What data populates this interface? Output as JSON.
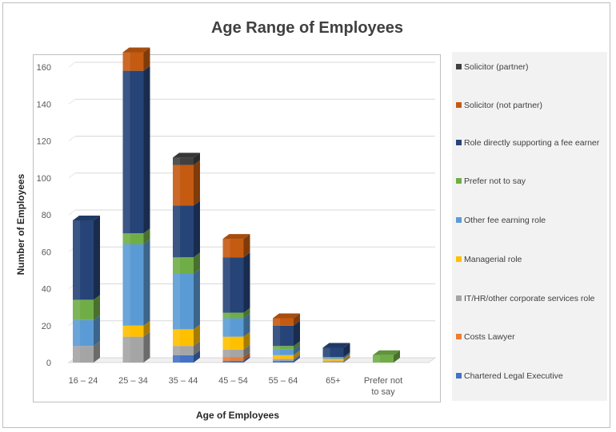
{
  "chart_data": {
    "type": "bar",
    "stacked": true,
    "three_d": true,
    "title": "Age Range of Employees",
    "xlabel": "Age of Employees",
    "ylabel": "Number of Employees",
    "ylim": [
      0,
      160
    ],
    "yticks": [
      0,
      20,
      40,
      60,
      80,
      100,
      120,
      140,
      160
    ],
    "grid": true,
    "legend_position": "right",
    "categories": [
      "16 – 24",
      "25 – 34",
      "35 – 44",
      "45 – 54",
      "55 – 64",
      "65+",
      "Prefer not to say"
    ],
    "series": [
      {
        "name": "Chartered Legal Executive",
        "color": "#4472C4",
        "values": [
          0,
          0,
          4,
          1,
          1,
          0,
          0
        ]
      },
      {
        "name": "Costs Lawyer",
        "color": "#ED7D31",
        "values": [
          0,
          0,
          0,
          2,
          0,
          0,
          0
        ]
      },
      {
        "name": "IT/HR/other corporate services role",
        "color": "#A5A5A5",
        "values": [
          9,
          14,
          5,
          4,
          1,
          1,
          0
        ]
      },
      {
        "name": "Managerial role",
        "color": "#FFC000",
        "values": [
          0,
          6,
          9,
          7,
          2,
          1,
          0
        ]
      },
      {
        "name": "Other fee earning role",
        "color": "#5B9BD5",
        "values": [
          14,
          44,
          30,
          10,
          3,
          1,
          0
        ]
      },
      {
        "name": "Prefer not to say",
        "color": "#70AD47",
        "values": [
          11,
          6,
          9,
          3,
          2,
          0,
          4
        ]
      },
      {
        "name": "Role directly supporting a fee earner",
        "color": "#264478",
        "values": [
          43,
          88,
          28,
          30,
          11,
          5,
          0
        ]
      },
      {
        "name": "Solicitor (not partner)",
        "color": "#C55A11",
        "values": [
          0,
          10,
          22,
          10,
          4,
          0,
          0
        ]
      },
      {
        "name": "Solicitor (partner)",
        "color": "#404040",
        "values": [
          0,
          0,
          4,
          0,
          0,
          0,
          0
        ]
      }
    ],
    "legend_order": [
      "Solicitor (partner)",
      "Solicitor (not partner)",
      "Role directly supporting a fee earner",
      "Prefer not to say",
      "Other fee earning role",
      "Managerial role",
      "IT/HR/other corporate services role",
      "Costs Lawyer",
      "Chartered Legal Executive"
    ]
  }
}
